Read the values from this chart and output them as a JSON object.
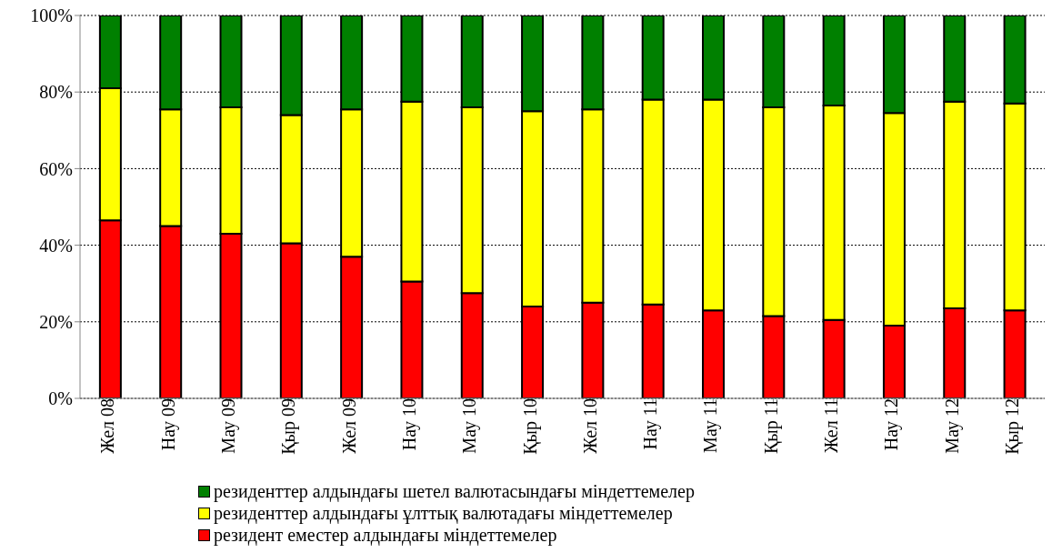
{
  "chart_data": {
    "type": "bar",
    "stacked": true,
    "categories": [
      "Жел 08",
      "Нау 09",
      "Мау 09",
      "Қыр 09",
      "Жел 09",
      "Нау 10",
      "Мау 10",
      "Қыр 10",
      "Жел 10",
      "Нау 11",
      "Мау 11",
      "Қыр 11",
      "Жел 11",
      "Нау 12",
      "Мау 12",
      "Қыр 12"
    ],
    "series": [
      {
        "name": "резидент еместер алдындағы міндеттемелер",
        "color": "#ff0000",
        "values": [
          46.5,
          45,
          43,
          40.5,
          37,
          30.5,
          27.5,
          24,
          25,
          24.5,
          23,
          21.5,
          20.5,
          19,
          23.5,
          23
        ]
      },
      {
        "name": "резиденттер алдындағы ұлттық валютадағы міндеттемелер",
        "color": "#ffff00",
        "values": [
          34.5,
          30.5,
          33,
          33.5,
          38.5,
          47,
          48.5,
          51,
          50.5,
          53.5,
          55,
          54.5,
          56,
          55.5,
          54,
          54
        ]
      },
      {
        "name": "резиденттер алдындағы шетел валютасындағы міндеттемелер",
        "color": "#008000",
        "values": [
          19,
          24.5,
          24,
          26,
          24.5,
          22.5,
          24,
          25,
          24.5,
          22,
          22,
          24,
          23.5,
          25.5,
          22.5,
          23
        ]
      }
    ],
    "ylim": [
      0,
      100
    ],
    "yticks": [
      {
        "value": 0,
        "label": "0%"
      },
      {
        "value": 20,
        "label": "20%"
      },
      {
        "value": 40,
        "label": "40%"
      },
      {
        "value": 60,
        "label": "60%"
      },
      {
        "value": 80,
        "label": "80%"
      },
      {
        "value": 100,
        "label": "100%"
      }
    ],
    "grid": "y",
    "legend": "bottom"
  }
}
